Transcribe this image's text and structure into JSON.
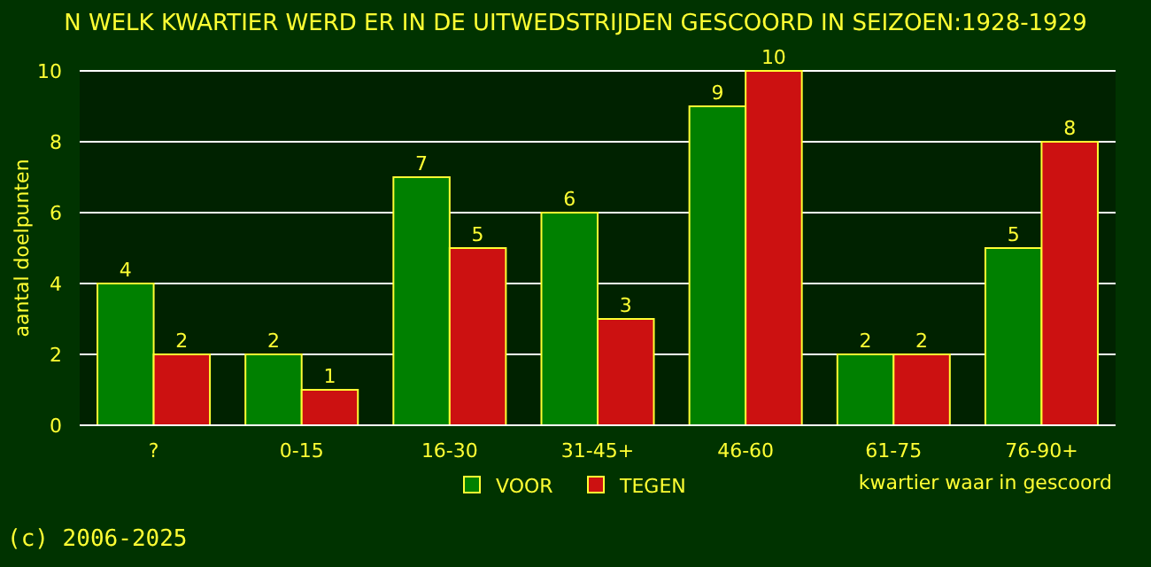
{
  "chart_data": {
    "type": "bar",
    "title": "N WELK KWARTIER WERD ER IN DE UITWEDSTRIJDEN GESCOORD IN SEIZOEN:1928-1929",
    "xlabel": "kwartier waar in gescoord",
    "ylabel": "aantal doelpunten",
    "categories": [
      "?",
      "0-15",
      "16-30",
      "31-45+",
      "46-60",
      "61-75",
      "76-90+"
    ],
    "series": [
      {
        "name": "VOOR",
        "color": "#008000",
        "values": [
          4,
          2,
          7,
          6,
          9,
          2,
          5
        ]
      },
      {
        "name": "TEGEN",
        "color": "#cc1111",
        "values": [
          2,
          1,
          5,
          3,
          10,
          2,
          8
        ]
      }
    ],
    "ylim": [
      0,
      10
    ],
    "yticks": [
      0,
      2,
      4,
      6,
      8,
      10
    ],
    "grid": "y",
    "legend": "bottom",
    "data_labels": true,
    "annotations": [
      "(c) 2006-2025"
    ]
  }
}
